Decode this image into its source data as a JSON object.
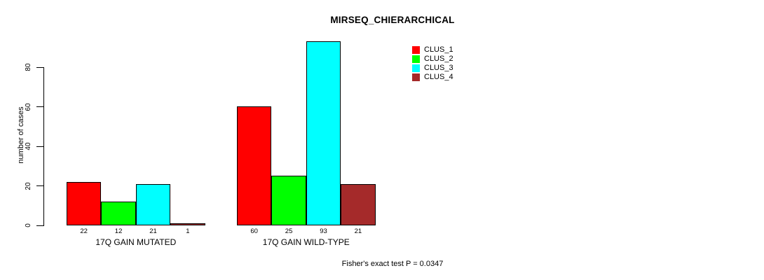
{
  "chart_data": {
    "type": "bar",
    "title": "MIRSEQ_CHIERARCHICAL",
    "ylabel": "number of cases",
    "xlabel": "",
    "ylim": [
      0,
      80
    ],
    "yticks": [
      0,
      20,
      40,
      60,
      80
    ],
    "grid": false,
    "legend_position": "top-right",
    "categories": [
      "17Q GAIN MUTATED",
      "17Q GAIN WILD-TYPE"
    ],
    "groups": [
      {
        "label": "17Q GAIN MUTATED",
        "values": [
          22,
          12,
          21,
          1
        ]
      },
      {
        "label": "17Q GAIN WILD-TYPE",
        "values": [
          60,
          25,
          93,
          21
        ]
      }
    ],
    "series": [
      {
        "name": "CLUS_1",
        "color": "#FF0000"
      },
      {
        "name": "CLUS_2",
        "color": "#00FF00"
      },
      {
        "name": "CLUS_3",
        "color": "#00FFFF"
      },
      {
        "name": "CLUS_4",
        "color": "#A52A2A"
      }
    ],
    "bar_value_labels": [
      [
        22,
        12,
        21,
        1
      ],
      [
        60,
        25,
        93,
        21
      ]
    ],
    "annotation": "Fisher's exact test P = 0.0347",
    "axis_color": "#000000",
    "background_color": "#FFFFFF"
  }
}
